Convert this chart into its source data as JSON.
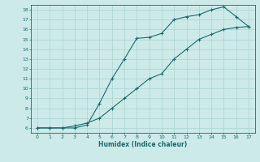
{
  "xlabel": "Humidex (Indice chaleur)",
  "ylabel": "",
  "bg_color": "#cceae8",
  "grid_color": "#aad4d0",
  "line_color": "#1a6b6b",
  "xlim": [
    -0.5,
    17.5
  ],
  "ylim": [
    5.5,
    18.5
  ],
  "xticks": [
    0,
    1,
    2,
    3,
    4,
    5,
    6,
    7,
    8,
    9,
    10,
    11,
    12,
    13,
    14,
    15,
    16,
    17
  ],
  "yticks": [
    6,
    7,
    8,
    9,
    10,
    11,
    12,
    13,
    14,
    15,
    16,
    17,
    18
  ],
  "curve1_x": [
    0,
    1,
    2,
    3,
    4,
    5,
    6,
    7,
    8,
    9,
    10,
    11,
    12,
    13,
    14,
    15,
    16,
    17
  ],
  "curve1_y": [
    6,
    6,
    6,
    6,
    6.3,
    8.5,
    11,
    13,
    15.1,
    15.2,
    15.6,
    17.0,
    17.3,
    17.5,
    18.0,
    18.3,
    17.3,
    16.3
  ],
  "curve2_x": [
    0,
    1,
    2,
    3,
    4,
    5,
    6,
    7,
    8,
    9,
    10,
    11,
    12,
    13,
    14,
    15,
    16,
    17
  ],
  "curve2_y": [
    6,
    6,
    6,
    6.2,
    6.5,
    7.0,
    8.0,
    9.0,
    10.0,
    11.0,
    11.5,
    13.0,
    14.0,
    15.0,
    15.5,
    16.0,
    16.2,
    16.3
  ],
  "marker": "+",
  "markersize": 3,
  "linewidth": 0.8,
  "tick_fontsize": 4.5,
  "xlabel_fontsize": 5.5
}
